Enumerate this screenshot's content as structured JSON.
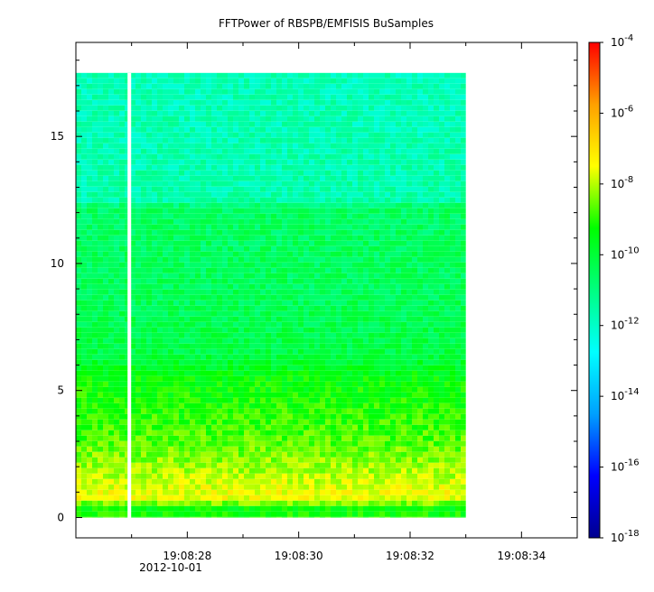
{
  "chart_data": {
    "type": "heatmap",
    "title": "FFTPower of RBSPB/EMFISIS  BuSamples",
    "xlabel": "",
    "ylabel": "",
    "x_ticks": [
      {
        "value": 28,
        "label": "19:08:28"
      },
      {
        "value": 30,
        "label": "19:08:30"
      },
      {
        "value": 32,
        "label": "19:08:32"
      },
      {
        "value": 34,
        "label": "19:08:34"
      }
    ],
    "x_minor_ticks": [
      27,
      29,
      31,
      33
    ],
    "x_date_label": "2012-10-01",
    "xlim": [
      26.0,
      35.0
    ],
    "ylim": [
      -0.8,
      18.7
    ],
    "y_ticks": [
      0,
      5,
      10,
      15
    ],
    "data_time_range": [
      26.0,
      33.0
    ],
    "data_freq_range": [
      0.0,
      17.5
    ],
    "gap_time": 26.96,
    "power_by_frequency": [
      {
        "freq": 0.0,
        "log10_power": -9.0
      },
      {
        "freq": 0.3,
        "log10_power": -9.6
      },
      {
        "freq": 0.8,
        "log10_power": -7.4
      },
      {
        "freq": 1.5,
        "log10_power": -7.9
      },
      {
        "freq": 3.0,
        "log10_power": -8.7
      },
      {
        "freq": 4.5,
        "log10_power": -9.1
      },
      {
        "freq": 5.5,
        "log10_power": -9.4
      },
      {
        "freq": 6.5,
        "log10_power": -10.2
      },
      {
        "freq": 9.0,
        "log10_power": -10.5
      },
      {
        "freq": 12.2,
        "log10_power": -10.6
      },
      {
        "freq": 12.5,
        "log10_power": -11.6
      },
      {
        "freq": 17.5,
        "log10_power": -11.8
      }
    ],
    "colorbar": {
      "scale": "log",
      "range": [
        -18,
        -4
      ],
      "ticks": [
        {
          "exp": -4,
          "base": "10",
          "sup": "-4"
        },
        {
          "exp": -6,
          "base": "10",
          "sup": "-6"
        },
        {
          "exp": -8,
          "base": "10",
          "sup": "-8"
        },
        {
          "exp": -10,
          "base": "10",
          "sup": "-10"
        },
        {
          "exp": -12,
          "base": "10",
          "sup": "-12"
        },
        {
          "exp": -14,
          "base": "10",
          "sup": "-14"
        },
        {
          "exp": -16,
          "base": "10",
          "sup": "-16"
        },
        {
          "exp": -18,
          "base": "10",
          "sup": "-18"
        }
      ],
      "colors": [
        "#00008f",
        "#0000ff",
        "#00a0ff",
        "#00ffff",
        "#00ff80",
        "#00ff00",
        "#ffff00",
        "#ffa000",
        "#ff0000"
      ]
    }
  }
}
